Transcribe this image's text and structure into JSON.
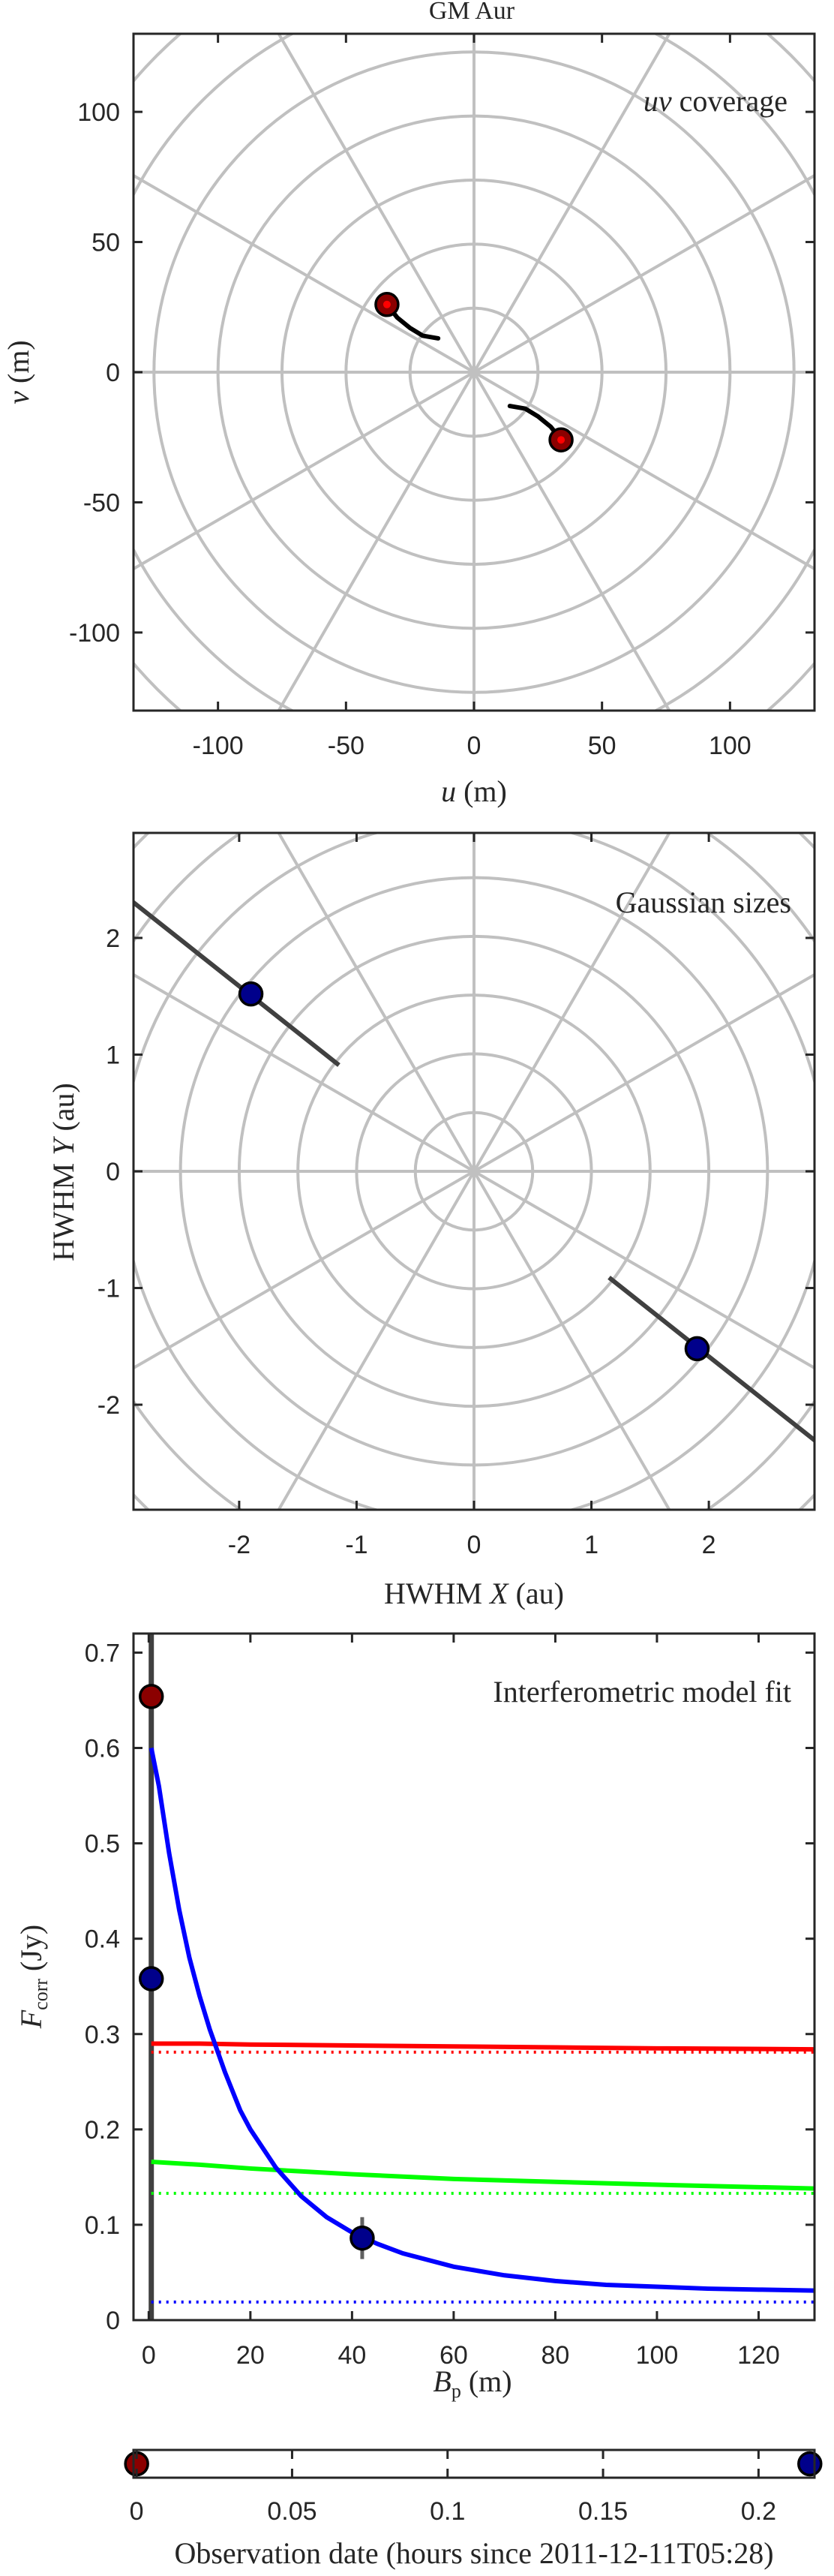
{
  "page_title": "GM Aur",
  "chart_data": [
    {
      "type": "scatter",
      "title": "uv coverage",
      "title_parts": [
        "uv",
        " coverage"
      ],
      "xlabel_parts": [
        "u",
        " (m)"
      ],
      "ylabel_parts": [
        "v",
        " (m)"
      ],
      "xlim": [
        -133,
        133
      ],
      "ylim": [
        -130,
        130
      ],
      "xticks": [
        -100,
        -50,
        0,
        50,
        100
      ],
      "yticks": [
        -100,
        -50,
        0,
        50,
        100
      ],
      "polar_grid": {
        "ring_step": 25,
        "spoke_step_deg": 30
      },
      "tracks": [
        {
          "x": [
            -34,
            -30,
            -25,
            -20,
            -14
          ],
          "y": [
            26,
            21,
            17,
            14,
            13
          ]
        },
        {
          "x": [
            14,
            20,
            25,
            30,
            34
          ],
          "y": [
            -13,
            -14,
            -17,
            -21,
            -26
          ]
        }
      ],
      "points": [
        {
          "x": -34,
          "y": 26,
          "color": "#8b0000"
        },
        {
          "x": 34,
          "y": -26,
          "color": "#8b0000"
        }
      ],
      "colors": {
        "grid": "#c0c0c0",
        "track": "#000000"
      }
    },
    {
      "type": "scatter",
      "title": "Gaussian sizes",
      "title_parts": [
        "Gaussian sizes"
      ],
      "xlabel_parts": [
        "HWHM ",
        "X",
        " (au)"
      ],
      "ylabel_parts": [
        "HWHM ",
        "Y",
        " (au)"
      ],
      "xlim": [
        -2.9,
        2.9
      ],
      "ylim": [
        -2.9,
        2.9
      ],
      "xticks": [
        -2,
        -1,
        0,
        1,
        2
      ],
      "yticks": [
        -2,
        -1,
        0,
        1,
        2
      ],
      "polar_grid": {
        "ring_step": 0.5,
        "spoke_step_deg": 30
      },
      "segments": [
        {
          "x": [
            -2.92,
            -1.15
          ],
          "y": [
            2.32,
            0.91
          ]
        },
        {
          "x": [
            1.15,
            2.92
          ],
          "y": [
            -0.91,
            -2.32
          ]
        }
      ],
      "points": [
        {
          "x": -1.9,
          "y": 1.52,
          "color": "#00008b"
        },
        {
          "x": 1.9,
          "y": -1.52,
          "color": "#00008b"
        }
      ],
      "colors": {
        "grid": "#c0c0c0",
        "segment": "#404040"
      }
    },
    {
      "type": "line",
      "title": "Interferometric model fit",
      "xlabel_parts": [
        "B",
        "p",
        " (m)"
      ],
      "ylabel_parts": [
        "F",
        "corr",
        " (Jy)"
      ],
      "xlim": [
        -3,
        131
      ],
      "ylim": [
        0,
        0.72
      ],
      "xticks": [
        0,
        20,
        40,
        60,
        80,
        100,
        120
      ],
      "yticks": [
        0,
        0.1,
        0.2,
        0.3,
        0.4,
        0.5,
        0.6,
        0.7
      ],
      "ytick_labels": [
        "0",
        "0.1",
        "0.2",
        "0.3",
        "0.4",
        "0.5",
        "0.6",
        "0.7"
      ],
      "vertical_line_x": 0.5,
      "series": [
        {
          "color": "#ff0000",
          "x": [
            0.5,
            10,
            20,
            40,
            60,
            80,
            100,
            131
          ],
          "y": [
            0.29,
            0.29,
            0.289,
            0.288,
            0.287,
            0.286,
            0.285,
            0.284
          ],
          "style": "solid"
        },
        {
          "color": "#ff0000",
          "x": [
            0.5,
            131
          ],
          "y": [
            0.281,
            0.281
          ],
          "style": "dotted"
        },
        {
          "color": "#00ff00",
          "x": [
            0.5,
            10,
            20,
            30,
            40,
            60,
            80,
            100,
            131
          ],
          "y": [
            0.166,
            0.163,
            0.159,
            0.156,
            0.153,
            0.148,
            0.145,
            0.142,
            0.138
          ],
          "style": "solid"
        },
        {
          "color": "#00ff00",
          "x": [
            0.5,
            131
          ],
          "y": [
            0.133,
            0.133
          ],
          "style": "dotted"
        },
        {
          "color": "#0000ff",
          "x": [
            0.5,
            2,
            4,
            6,
            8,
            10,
            12,
            15,
            18,
            20,
            25,
            30,
            35,
            40,
            45,
            50,
            60,
            70,
            80,
            90,
            100,
            110,
            120,
            131
          ],
          "y": [
            0.6,
            0.56,
            0.49,
            0.43,
            0.38,
            0.34,
            0.305,
            0.26,
            0.22,
            0.2,
            0.16,
            0.13,
            0.108,
            0.092,
            0.08,
            0.07,
            0.056,
            0.047,
            0.041,
            0.037,
            0.035,
            0.033,
            0.032,
            0.031
          ],
          "style": "solid"
        },
        {
          "color": "#0000ff",
          "x": [
            0.5,
            131
          ],
          "y": [
            0.019,
            0.019
          ],
          "style": "dotted"
        }
      ],
      "points": [
        {
          "x": 0.5,
          "y": 0.654,
          "color": "#8b0000"
        },
        {
          "x": 0.5,
          "y": 0.358,
          "color": "#00008b"
        },
        {
          "x": 42,
          "y": 0.086,
          "color": "#00008b",
          "err": 0.022
        }
      ]
    },
    {
      "type": "scatter",
      "xlabel": "Observation date (hours since 2011-12-11T05:28)",
      "xlim": [
        -0.001,
        0.218
      ],
      "xticks": [
        0,
        0.05,
        0.1,
        0.15,
        0.2
      ],
      "xtick_labels": [
        "0",
        "0.05",
        "0.1",
        "0.15",
        "0.2"
      ],
      "points": [
        {
          "x": 0.0,
          "color": "#8b0000"
        },
        {
          "x": 0.2165,
          "color": "#00008b"
        }
      ]
    }
  ]
}
